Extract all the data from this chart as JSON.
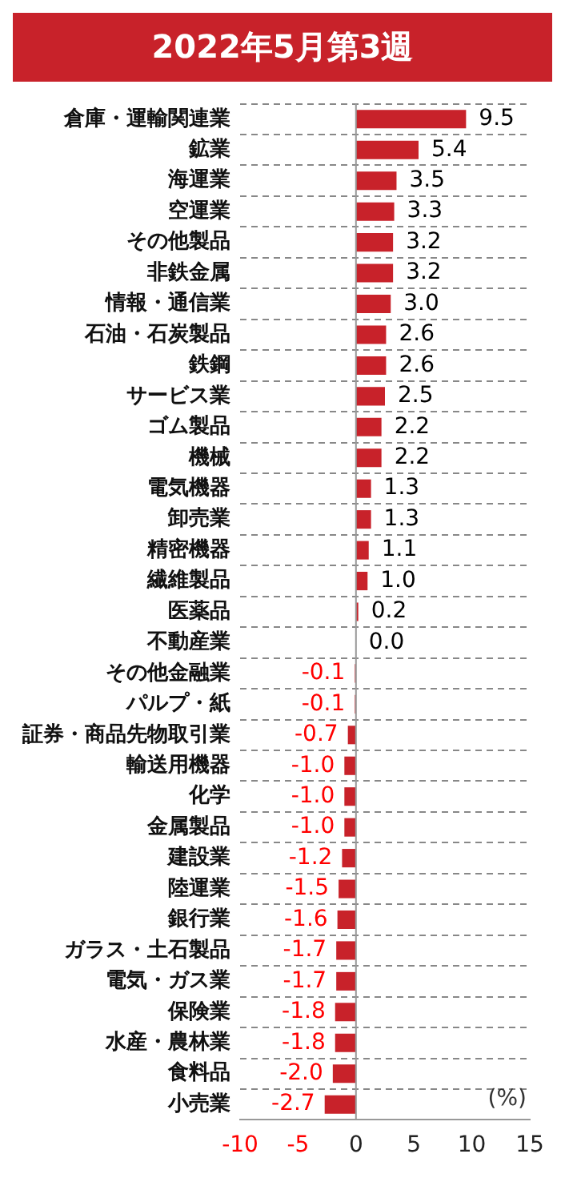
{
  "chart_data": {
    "type": "bar",
    "orientation": "horizontal",
    "title": "2022年5月第3週",
    "categories": [
      "倉庫・運輸関連業",
      "鉱業",
      "海運業",
      "空運業",
      "その他製品",
      "非鉄金属",
      "情報・通信業",
      "石油・石炭製品",
      "鉄鋼",
      "サービス業",
      "ゴム製品",
      "機械",
      "電気機器",
      "卸売業",
      "精密機器",
      "繊維製品",
      "医薬品",
      "不動産業",
      "その他金融業",
      "パルプ・紙",
      "証券・商品先物取引業",
      "輸送用機器",
      "化学",
      "金属製品",
      "建設業",
      "陸運業",
      "銀行業",
      "ガラス・土石製品",
      "電気・ガス業",
      "保険業",
      "水産・農林業",
      "食料品",
      "小売業"
    ],
    "values": [
      9.5,
      5.4,
      3.5,
      3.3,
      3.2,
      3.2,
      3.0,
      2.6,
      2.6,
      2.5,
      2.2,
      2.2,
      1.3,
      1.3,
      1.1,
      1.0,
      0.2,
      0.0,
      -0.1,
      -0.1,
      -0.7,
      -1.0,
      -1.0,
      -1.0,
      -1.2,
      -1.5,
      -1.6,
      -1.7,
      -1.7,
      -1.8,
      -1.8,
      -2.0,
      -2.7
    ],
    "value_labels": [
      "9.5",
      "5.4",
      "3.5",
      "3.3",
      "3.2",
      "3.2",
      "3.0",
      "2.6",
      "2.6",
      "2.5",
      "2.2",
      "2.2",
      "1.3",
      "1.3",
      "1.1",
      "1.0",
      "0.2",
      "0.0",
      "-0.1",
      "-0.1",
      "-0.7",
      "-1.0",
      "-1.0",
      "-1.0",
      "-1.2",
      "-1.5",
      "-1.6",
      "-1.7",
      "-1.7",
      "-1.8",
      "-1.8",
      "-2.0",
      "-2.7"
    ],
    "color": "#c8222a",
    "xlim": [
      -10,
      15
    ],
    "xticks": [
      -10,
      -5,
      0,
      5,
      10,
      15
    ],
    "grid": "y",
    "legend": false,
    "annotations": [
      "(%)"
    ]
  }
}
